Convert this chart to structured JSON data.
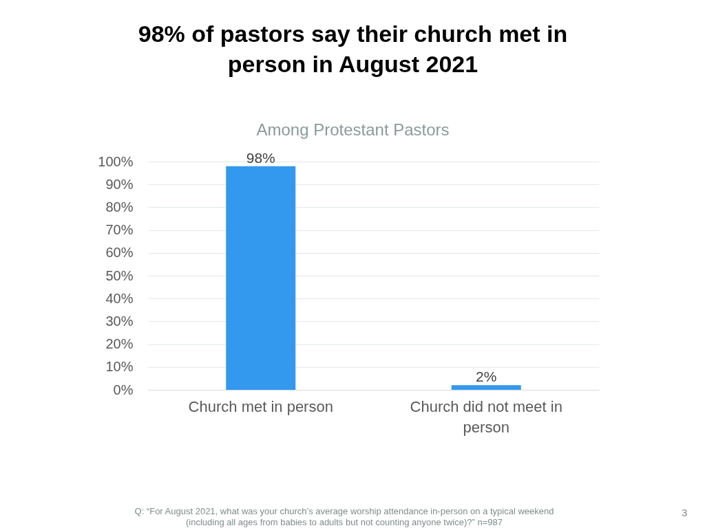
{
  "chart_data": {
    "type": "bar",
    "title": "98% of pastors say their church met in person in August 2021",
    "subtitle": "Among Protestant Pastors",
    "categories": [
      "Church met in person",
      "Church did not meet in person"
    ],
    "values": [
      98,
      2
    ],
    "value_labels": [
      "98%",
      "2%"
    ],
    "color": "#3399ee",
    "ylim": [
      0,
      100
    ],
    "yticks": [
      {
        "value": 0,
        "label": "0%"
      },
      {
        "value": 10,
        "label": "10%"
      },
      {
        "value": 20,
        "label": "20%"
      },
      {
        "value": 30,
        "label": "30%"
      },
      {
        "value": 40,
        "label": "40%"
      },
      {
        "value": 50,
        "label": "50%"
      },
      {
        "value": 60,
        "label": "60%"
      },
      {
        "value": 70,
        "label": "70%"
      },
      {
        "value": 80,
        "label": "80%"
      },
      {
        "value": 90,
        "label": "90%"
      },
      {
        "value": 100,
        "label": "100%"
      }
    ],
    "grid": "y",
    "annotations": [
      "Q: “For August 2021, what was your church’s average worship attendance in-person on a typical weekend (including all ages from babies to adults but not counting anyone twice)?” n=987",
      "3"
    ]
  }
}
